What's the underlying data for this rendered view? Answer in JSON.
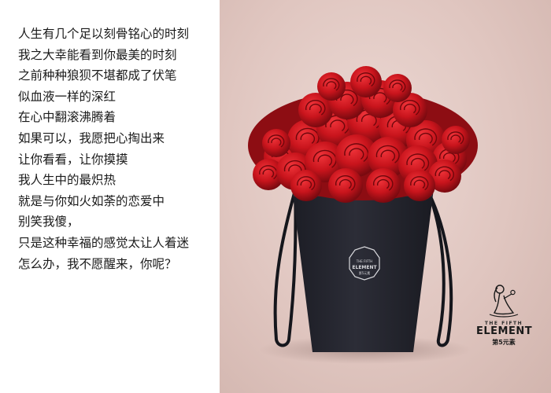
{
  "poem": {
    "lines": [
      "人生有几个足以刻骨铭心的时刻",
      "我之大幸能看到你最美的时刻",
      "之前种种狼狈不堪都成了伏笔",
      "似血液一样的深红",
      "在心中翻滚沸腾着",
      "如果可以，我愿把心掏出来",
      "让你看看，让你摸摸",
      "我人生中的最炽热",
      "就是与你如火如荼的恋爱中",
      "别笑我傻，",
      "只是这种幸福的感觉太让人着迷",
      "怎么办，我不愿醒来，你呢？"
    ]
  },
  "brand": {
    "line1": "THE FIFTH",
    "line2": "ELEMENT",
    "line3": "第5元素"
  },
  "box_label": {
    "line1": "THE FIFTH",
    "line2": "ELEMENT",
    "line3": "第5元素"
  },
  "colors": {
    "rose": "#c8141c",
    "box": "#25262f",
    "backdrop": "#e3cbc5"
  }
}
